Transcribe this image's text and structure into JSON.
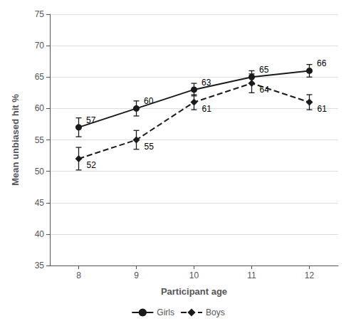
{
  "chart_data": {
    "type": "line",
    "x": [
      8,
      9,
      10,
      11,
      12
    ],
    "series": [
      {
        "name": "Girls",
        "color": "#1a1a1a",
        "marker": "circle",
        "line_style": "solid",
        "values": [
          57,
          60,
          63,
          65,
          66
        ],
        "errors": [
          1.5,
          1.2,
          1.0,
          1.0,
          1.0
        ]
      },
      {
        "name": "Boys",
        "color": "#1a1a1a",
        "marker": "diamond",
        "line_style": "dashed",
        "values": [
          52,
          55,
          61,
          64,
          61
        ],
        "errors": [
          1.8,
          1.5,
          1.2,
          1.5,
          1.2
        ]
      }
    ],
    "xlabel": "Participant age",
    "ylabel": "Mean unbiased hit %",
    "xlim": [
      7.5,
      12.5
    ],
    "xticks": [
      8,
      9,
      10,
      11,
      12
    ],
    "ylim": [
      35,
      75
    ],
    "yticks": [
      35,
      40,
      45,
      50,
      55,
      60,
      65,
      70,
      75
    ],
    "grid": true,
    "legend": "bottom",
    "data_labels": true
  }
}
